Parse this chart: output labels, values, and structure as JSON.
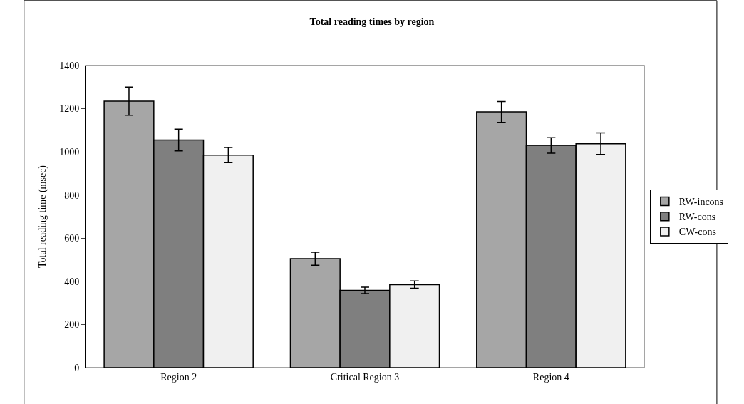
{
  "chart_data": {
    "type": "bar",
    "title": "Total reading times by region",
    "ylabel": "Total reading time (msec)",
    "categories": [
      "Region 2",
      "Critical Region 3",
      "Region 4"
    ],
    "series": [
      {
        "name": "RW-incons",
        "color": "#a6a6a6",
        "values": [
          1235,
          505,
          1185
        ],
        "errors": [
          65,
          30,
          48
        ]
      },
      {
        "name": "RW-cons",
        "color": "#7f7f7f",
        "values": [
          1055,
          358,
          1030
        ],
        "errors": [
          50,
          15,
          36
        ]
      },
      {
        "name": "CW-cons",
        "color": "#f0f0f0",
        "values": [
          985,
          385,
          1038
        ],
        "errors": [
          35,
          17,
          50
        ]
      }
    ],
    "ylim": [
      0,
      1400
    ],
    "yticks": [
      0,
      200,
      400,
      600,
      800,
      1000,
      1200,
      1400
    ],
    "grid": false,
    "legend": "right"
  }
}
